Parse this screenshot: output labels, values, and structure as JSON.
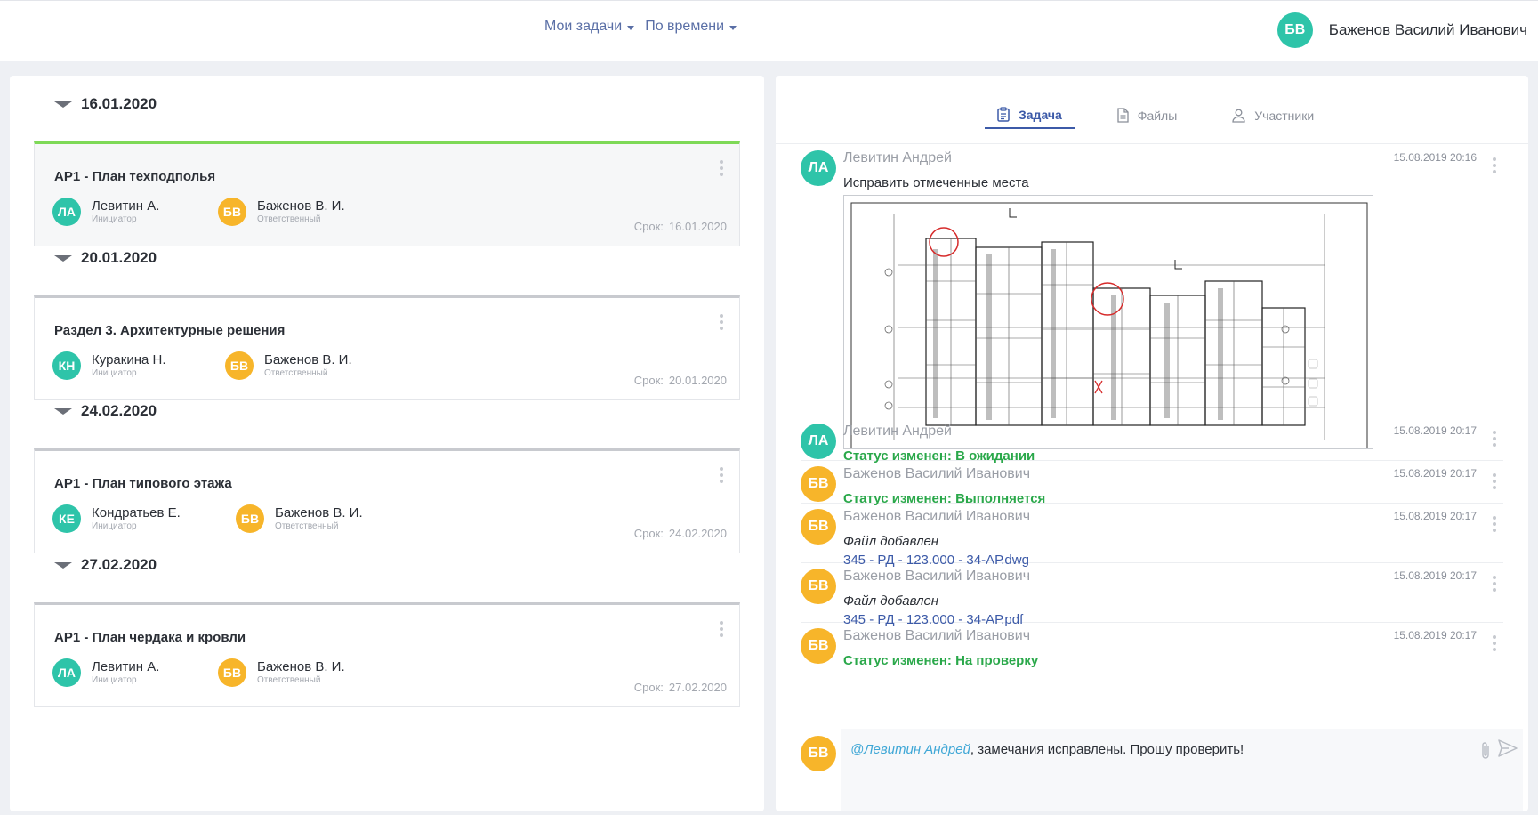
{
  "header": {
    "filters": [
      {
        "label": "Мои задачи"
      },
      {
        "label": "По времени"
      }
    ],
    "user": {
      "initials": "БВ",
      "name": "Баженов Василий Иванович"
    }
  },
  "tasks": {
    "groups": [
      {
        "date": "16.01.2020",
        "title": "АР1 - План техподполья",
        "initiator": {
          "initials": "ЛА",
          "name": "Левитин А.",
          "role": "Инициатор"
        },
        "responsible": {
          "initials": "БВ",
          "name": "Баженов В. И.",
          "role": "Ответственный"
        },
        "deadline_label": "Срок:",
        "deadline": "16.01.2020"
      },
      {
        "date": "20.01.2020",
        "title": "Раздел 3. Архитектурные решения",
        "initiator": {
          "initials": "КН",
          "name": "Куракина Н.",
          "role": "Инициатор"
        },
        "responsible": {
          "initials": "БВ",
          "name": "Баженов В. И.",
          "role": "Ответственный"
        },
        "deadline_label": "Срок:",
        "deadline": "20.01.2020"
      },
      {
        "date": "24.02.2020",
        "title": "АР1 - План типового этажа",
        "initiator": {
          "initials": "КЕ",
          "name": "Кондратьев Е.",
          "role": "Инициатор"
        },
        "responsible": {
          "initials": "БВ",
          "name": "Баженов В. И.",
          "role": "Ответственный"
        },
        "deadline_label": "Срок:",
        "deadline": "24.02.2020"
      },
      {
        "date": "27.02.2020",
        "title": "АР1 - План чердака и кровли",
        "initiator": {
          "initials": "ЛА",
          "name": "Левитин А.",
          "role": "Инициатор"
        },
        "responsible": {
          "initials": "БВ",
          "name": "Баженов В. И.",
          "role": "Ответственный"
        },
        "deadline_label": "Срок:",
        "deadline": "27.02.2020"
      }
    ]
  },
  "detail": {
    "tabs": [
      {
        "label": "Задача",
        "icon": "clipboard-icon"
      },
      {
        "label": "Файлы",
        "icon": "file-icon"
      },
      {
        "label": "Участники",
        "icon": "user-icon"
      }
    ],
    "feed": [
      {
        "initials": "ЛА",
        "author": "Левитин Андрей",
        "time": "15.08.2019 20:16",
        "text": "Исправить отмеченные места"
      },
      {
        "initials": "ЛА",
        "author": "Левитин Андрей",
        "time": "15.08.2019 20:17",
        "status": "Статус изменен: В ожидании"
      },
      {
        "initials": "БВ",
        "author": "Баженов Василий Иванович",
        "time": "15.08.2019 20:17",
        "status": "Статус изменен: Выполняется"
      },
      {
        "initials": "БВ",
        "author": "Баженов Василий Иванович",
        "time": "15.08.2019 20:17",
        "file_label": "Файл добавлен",
        "file": "345 - РД - 123.000 - 34-АР.dwg"
      },
      {
        "initials": "БВ",
        "author": "Баженов Василий Иванович",
        "time": "15.08.2019 20:17",
        "file_label": "Файл добавлен",
        "file": "345 - РД - 123.000 - 34-АР.pdf"
      },
      {
        "initials": "БВ",
        "author": "Баженов Василий Иванович",
        "time": "15.08.2019 20:17",
        "status": "Статус изменен: На проверку"
      }
    ],
    "composer": {
      "initials": "БВ",
      "mention": "@Левитин Андрей",
      "text": ", замечания исправлены. Прошу проверить!"
    }
  },
  "colors": {
    "teal": "#2ec4a9",
    "amber": "#f7b52a",
    "accent": "#3c5aa8",
    "status_green": "#2aa84a",
    "active_card_bar": "#7ed957"
  }
}
